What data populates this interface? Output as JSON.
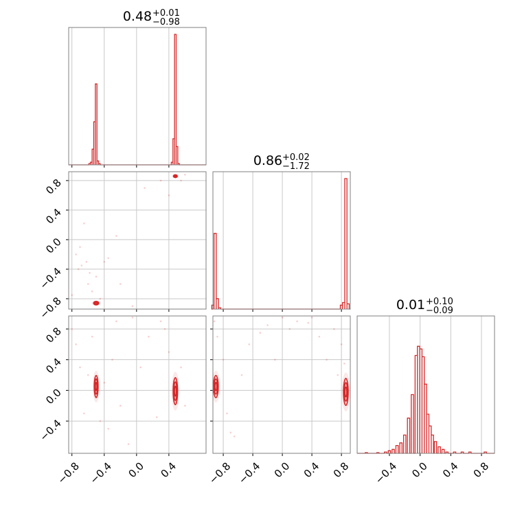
{
  "chart_data": {
    "type": "corner",
    "parameters": [
      {
        "median": "0.48",
        "plus": "+0.01",
        "minus": "−0.98"
      },
      {
        "median": "0.86",
        "plus": "+0.02",
        "minus": "−1.72"
      },
      {
        "median": "0.01",
        "plus": "+0.10",
        "minus": "−0.09"
      }
    ],
    "color": "#d62728",
    "grid": true,
    "ranges": [
      [
        -0.84,
        0.86
      ],
      [
        -0.94,
        0.92
      ],
      [
        -0.82,
        0.97
      ]
    ],
    "ticks": {
      "p0": [
        {
          "v": -0.8,
          "label": "−0.8"
        },
        {
          "v": -0.4,
          "label": "−0.4"
        },
        {
          "v": 0.0,
          "label": "0.0"
        },
        {
          "v": 0.4,
          "label": "0.4"
        }
      ],
      "p1": [
        {
          "v": -0.8,
          "label": "−0.8"
        },
        {
          "v": -0.4,
          "label": "−0.4"
        },
        {
          "v": 0.0,
          "label": "0.0"
        },
        {
          "v": 0.4,
          "label": "0.4"
        },
        {
          "v": 0.8,
          "label": "0.8"
        }
      ],
      "p2_y": [
        {
          "v": -0.4,
          "label": "−0.4"
        },
        {
          "v": 0.0,
          "label": "0.0"
        },
        {
          "v": 0.4,
          "label": "0.4"
        },
        {
          "v": 0.8,
          "label": "0.8"
        }
      ],
      "p2_x": [
        {
          "v": -0.4,
          "label": "−0.4"
        },
        {
          "v": 0.0,
          "label": "0.0"
        },
        {
          "v": 0.4,
          "label": "0.4"
        },
        {
          "v": 0.8,
          "label": "0.8"
        }
      ]
    },
    "histograms": [
      {
        "bins": [
          [
            -0.6,
            0
          ],
          [
            -0.58,
            0.01
          ],
          [
            -0.56,
            0.02
          ],
          [
            -0.54,
            0.12
          ],
          [
            -0.52,
            0.33
          ],
          [
            -0.5,
            0.62
          ],
          [
            -0.48,
            0.03
          ],
          [
            -0.46,
            0.01
          ],
          [
            0.44,
            0.02
          ],
          [
            0.46,
            0.2
          ],
          [
            0.48,
            1.0
          ],
          [
            0.5,
            0.14
          ],
          [
            0.52,
            0.01
          ]
        ],
        "width": 0.02
      },
      {
        "bins": [
          [
            -0.94,
            0.03
          ],
          [
            -0.91,
            0.58
          ],
          [
            -0.88,
            0.08
          ],
          [
            -0.85,
            0.01
          ],
          [
            0.8,
            0.03
          ],
          [
            0.83,
            0.05
          ],
          [
            0.86,
            1.0
          ],
          [
            0.89,
            0.04
          ]
        ],
        "width": 0.03
      },
      {
        "bins": [
          [
            -0.7,
            0.005
          ],
          [
            -0.55,
            0.005
          ],
          [
            -0.45,
            0.01
          ],
          [
            -0.4,
            0.02
          ],
          [
            -0.35,
            0.03
          ],
          [
            -0.3,
            0.06
          ],
          [
            -0.25,
            0.08
          ],
          [
            -0.2,
            0.14
          ],
          [
            -0.15,
            0.27
          ],
          [
            -0.1,
            0.45
          ],
          [
            -0.05,
            0.75
          ],
          [
            -0.02,
            0.82
          ],
          [
            0.01,
            0.8
          ],
          [
            0.04,
            0.74
          ],
          [
            0.07,
            0.53
          ],
          [
            0.1,
            0.3
          ],
          [
            0.13,
            0.21
          ],
          [
            0.16,
            0.14
          ],
          [
            0.2,
            0.09
          ],
          [
            0.25,
            0.05
          ],
          [
            0.3,
            0.03
          ],
          [
            0.35,
            0.01
          ],
          [
            0.45,
            0.01
          ],
          [
            0.55,
            0.01
          ],
          [
            0.65,
            0.01
          ],
          [
            0.85,
            0.01
          ]
        ],
        "width": 0.03
      }
    ],
    "clusters": {
      "p1_vs_p0": [
        {
          "x": 0.48,
          "y": 0.86,
          "sx": 0.015,
          "sy": 0.012
        },
        {
          "x": -0.5,
          "y": -0.86,
          "sx": 0.02,
          "sy": 0.015
        }
      ],
      "p2_vs_p0": [
        {
          "x": -0.5,
          "y": 0.05,
          "sx": 0.015,
          "sy": 0.09
        },
        {
          "x": 0.48,
          "y": -0.01,
          "sx": 0.017,
          "sy": 0.11
        }
      ],
      "p2_vs_p1": [
        {
          "x": -0.9,
          "y": 0.05,
          "sx": 0.02,
          "sy": 0.09
        },
        {
          "x": 0.86,
          "y": -0.02,
          "sx": 0.02,
          "sy": 0.11
        }
      ]
    },
    "scatter": {
      "p1_vs_p0": [
        [
          -0.72,
          -0.4
        ],
        [
          -0.7,
          -0.1
        ],
        [
          -0.68,
          -0.35
        ],
        [
          -0.65,
          0.22
        ],
        [
          -0.62,
          -0.3
        ],
        [
          -0.6,
          -0.6
        ],
        [
          -0.58,
          -0.45
        ],
        [
          -0.55,
          -0.7
        ],
        [
          -0.5,
          -0.5
        ],
        [
          -0.45,
          -0.8
        ],
        [
          -0.4,
          -0.3
        ],
        [
          -0.35,
          -0.25
        ],
        [
          -0.25,
          0.05
        ],
        [
          -0.2,
          -0.6
        ],
        [
          -0.05,
          -0.9
        ],
        [
          0.1,
          0.7
        ],
        [
          0.3,
          0.8
        ],
        [
          0.4,
          0.6
        ],
        [
          0.55,
          0.8
        ],
        [
          0.6,
          0.88
        ],
        [
          -0.8,
          -0.75
        ],
        [
          -0.75,
          -0.2
        ]
      ],
      "p2_vs_p0": [
        [
          -0.8,
          0.8
        ],
        [
          -0.75,
          0.6
        ],
        [
          -0.7,
          0.3
        ],
        [
          -0.65,
          -0.3
        ],
        [
          -0.6,
          0.2
        ],
        [
          -0.55,
          0.7
        ],
        [
          -0.45,
          -0.4
        ],
        [
          -0.4,
          0.1
        ],
        [
          -0.35,
          -0.5
        ],
        [
          -0.3,
          0.4
        ],
        [
          -0.25,
          0.9
        ],
        [
          -0.2,
          -0.2
        ],
        [
          -0.1,
          -0.7
        ],
        [
          0.05,
          0.3
        ],
        [
          0.15,
          0.7
        ],
        [
          0.25,
          -0.35
        ],
        [
          0.35,
          0.8
        ],
        [
          0.4,
          0.5
        ],
        [
          0.55,
          0.3
        ],
        [
          0.6,
          -0.2
        ],
        [
          0.3,
          0.9
        ],
        [
          -0.05,
          0.95
        ]
      ],
      "p2_vs_p1": [
        [
          -0.92,
          0.9
        ],
        [
          -0.88,
          0.7
        ],
        [
          -0.8,
          0.4
        ],
        [
          -0.75,
          -0.3
        ],
        [
          -0.7,
          -0.55
        ],
        [
          -0.65,
          -0.6
        ],
        [
          -0.55,
          0.2
        ],
        [
          -0.45,
          0.6
        ],
        [
          -0.3,
          0.75
        ],
        [
          -0.2,
          0.85
        ],
        [
          0.0,
          0.95
        ],
        [
          0.1,
          0.8
        ],
        [
          0.2,
          0.9
        ],
        [
          0.35,
          0.88
        ],
        [
          0.5,
          0.7
        ],
        [
          0.6,
          0.4
        ],
        [
          0.7,
          0.8
        ],
        [
          0.75,
          0.2
        ],
        [
          0.8,
          0.6
        ],
        [
          0.84,
          0.35
        ],
        [
          -0.1,
          0.4
        ],
        [
          0.4,
          0.95
        ]
      ]
    }
  }
}
